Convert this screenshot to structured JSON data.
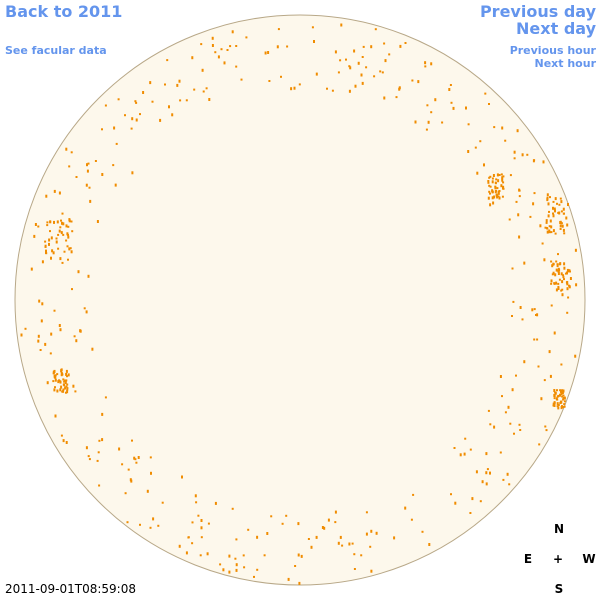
{
  "navigation": {
    "back": "Back to 2011",
    "facular": "See facular data",
    "previous_day": "Previous day",
    "next_day": "Next day",
    "previous_hour": "Previous hour",
    "next_hour": "Next hour"
  },
  "compass": {
    "north": "N",
    "east": "E",
    "center": "+",
    "west": "W",
    "south": "S"
  },
  "timestamp": "2011-09-01T08:59:08"
}
